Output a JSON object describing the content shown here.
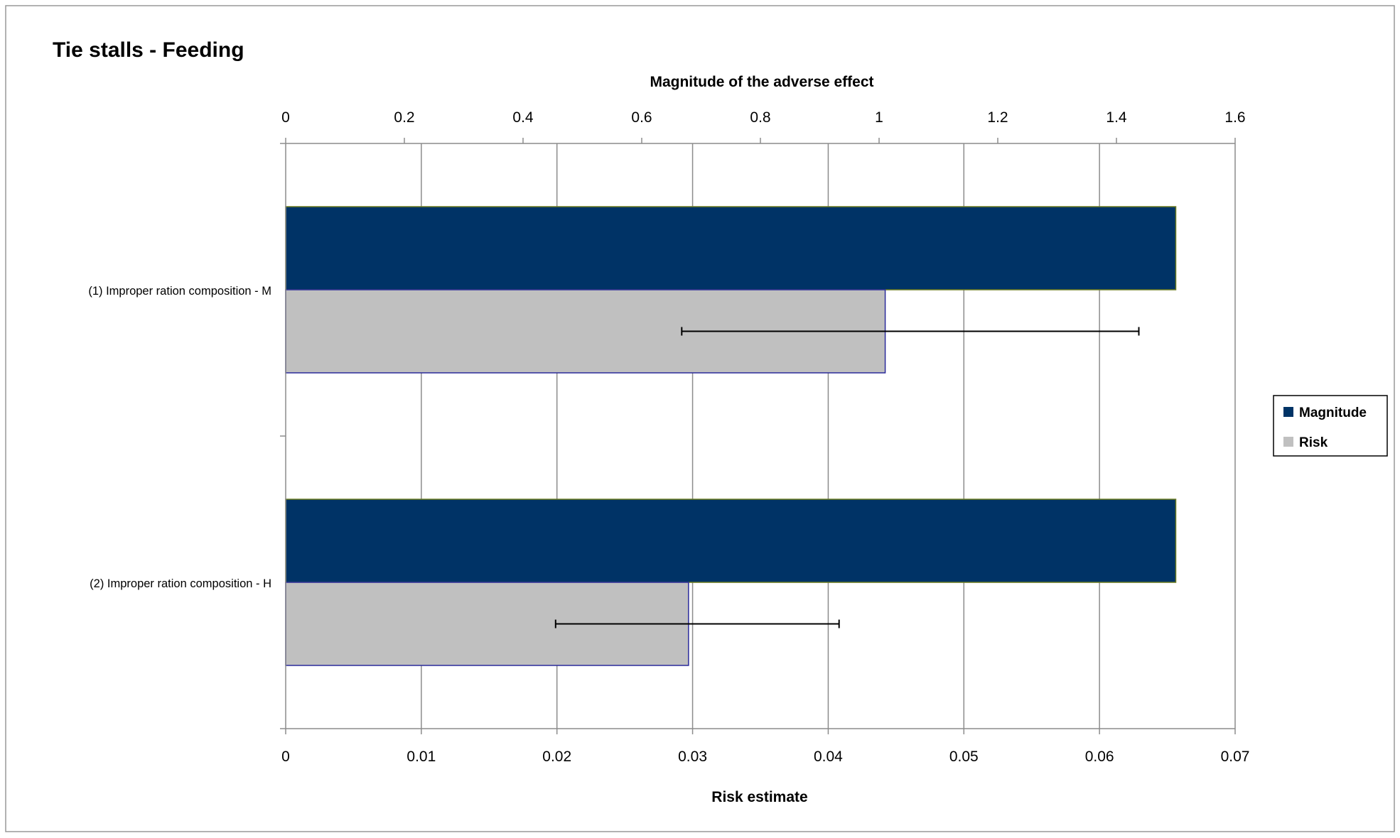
{
  "chart_data": {
    "type": "bar",
    "orientation": "horizontal",
    "title": "Tie stalls - Feeding",
    "categories": [
      "(1) Improper ration composition  - M",
      "(2) Improper ration composition  - H"
    ],
    "series": [
      {
        "name": "Magnitude",
        "axis": "top",
        "color": "#003366",
        "values": [
          1.5,
          1.5
        ]
      },
      {
        "name": "Risk",
        "axis": "bottom",
        "color": "#c0c0c0",
        "values": [
          0.0442,
          0.0297
        ],
        "error_low": [
          0.0292,
          0.0199
        ],
        "error_high": [
          0.0629,
          0.0408
        ]
      }
    ],
    "top_axis": {
      "label": "Magnitude  of the adverse effect",
      "range": [
        0,
        1.6
      ],
      "ticks": [
        0,
        0.2,
        0.4,
        0.6,
        0.8,
        1,
        1.2,
        1.4,
        1.6
      ],
      "tick_labels": [
        "0",
        "0.2",
        "0.4",
        "0.6",
        "0.8",
        "1",
        "1.2",
        "1.4",
        "1.6"
      ]
    },
    "bottom_axis": {
      "label": "Risk estimate",
      "range": [
        0,
        0.07
      ],
      "ticks": [
        0,
        0.01,
        0.02,
        0.03,
        0.04,
        0.05,
        0.06,
        0.07
      ],
      "tick_labels": [
        "0",
        "0.01",
        "0.02",
        "0.03",
        "0.04",
        "0.05",
        "0.06",
        "0.07"
      ]
    },
    "grid": true,
    "legend": "right",
    "legend_entries": [
      "Magnitude",
      "Risk"
    ]
  }
}
